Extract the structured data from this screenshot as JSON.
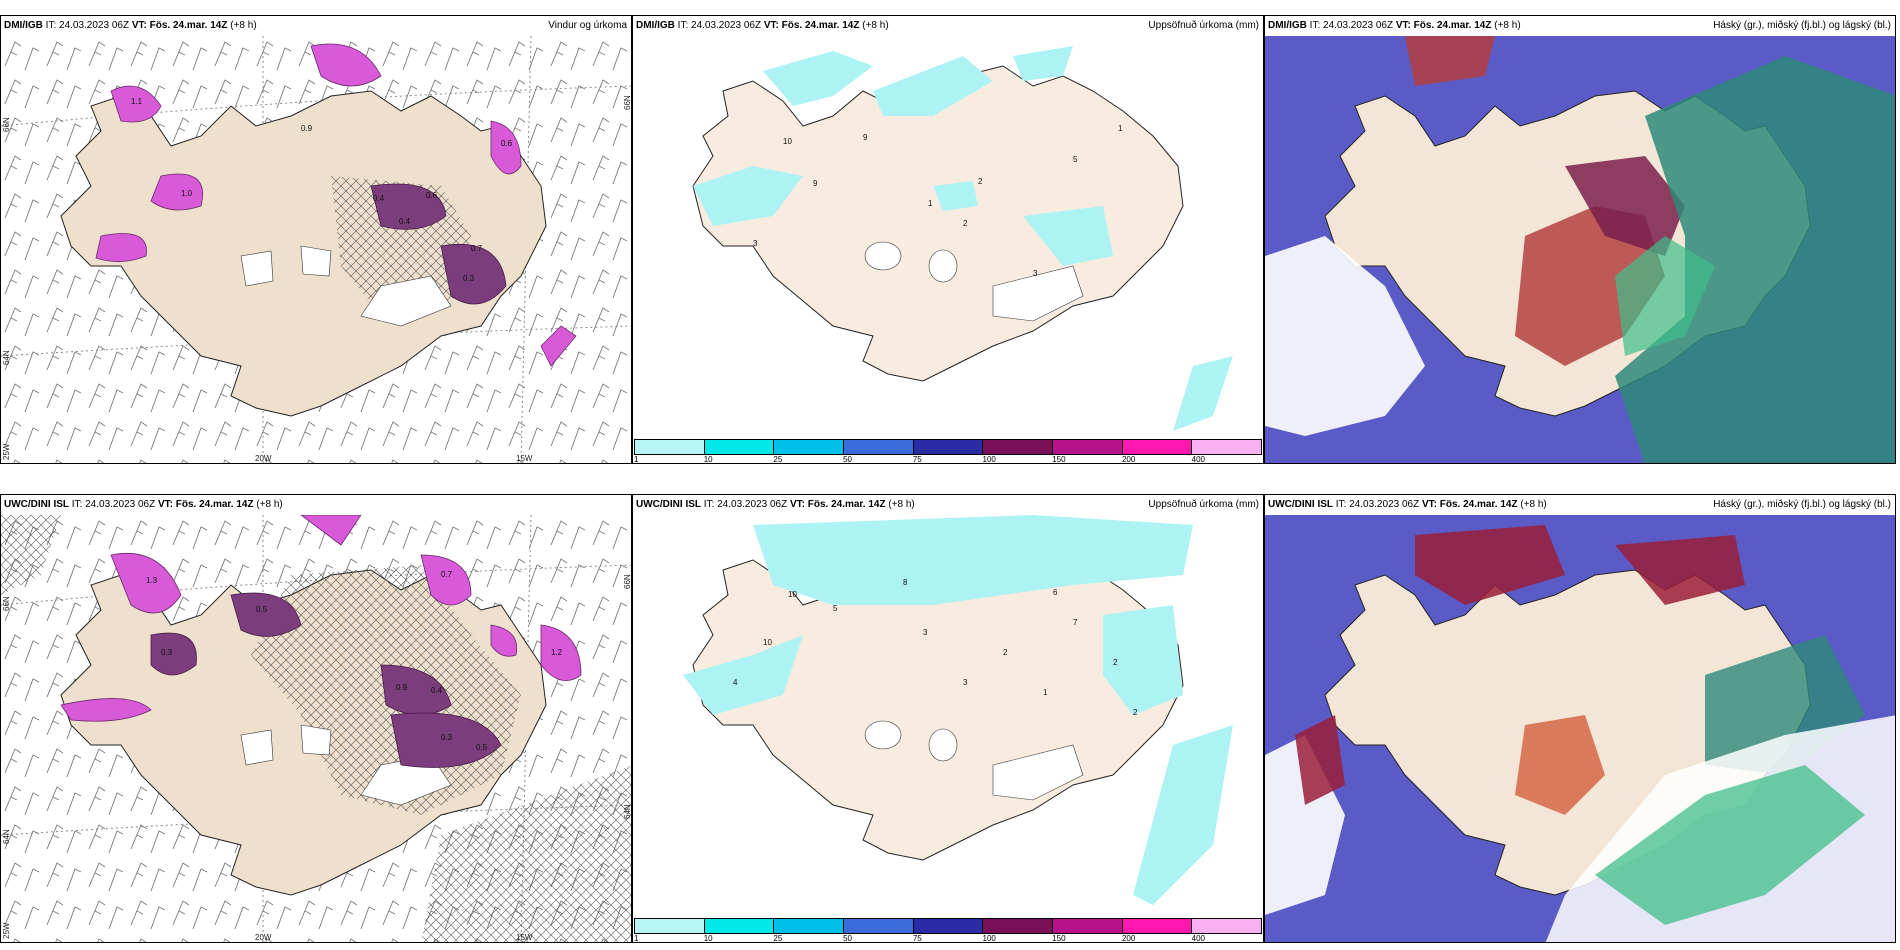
{
  "colors": {
    "land": "#f2e4d2",
    "land_top": "#eadccb",
    "coast": "#2a2a2a",
    "precip_magenta": "#d95ad9",
    "precip_dark": "#7b3d7b",
    "cyan_precip": "#aef3f3",
    "cloud_purple": "#5b5bc8",
    "cloud_red": "#b34040",
    "cloud_teal": "#2e8a7a",
    "cloud_green": "#3fbf8a"
  },
  "rows": [
    {
      "source": "DMI/IGB",
      "it_label": "IT: 24.03.2023 06Z",
      "vt_label": "VT: Fös. 24.mar. 14Z",
      "lead": "(+8 h)",
      "panels": [
        {
          "title": "Vindur og úrkoma",
          "type": "wind"
        },
        {
          "title": "Uppsöfnuð úrkoma (mm)",
          "type": "accum"
        },
        {
          "title": "Háský (gr.), miðský (fj.bl.) og lágský (bl.)",
          "type": "cloud"
        }
      ],
      "wind_values": [
        "0.4",
        "0.6",
        "0.4",
        "0.7",
        "0.3",
        "1.0",
        "0.9",
        "1.1",
        "0.6"
      ],
      "accum_values": [
        "10",
        "9",
        "9",
        "2",
        "2",
        "5",
        "1",
        "3",
        "3",
        "1"
      ]
    },
    {
      "source": "UWC/DINI ISL",
      "it_label": "IT: 24.03.2023 06Z",
      "vt_label": "VT: Fös. 24.mar. 14Z",
      "lead": "(+8 h)",
      "panels": [
        {
          "title": "",
          "type": "wind"
        },
        {
          "title": "Uppsöfnuð úrkoma (mm)",
          "type": "accum"
        },
        {
          "title": "Háský (gr.), miðský (fj.bl.) og lágský (bl.)",
          "type": "cloud"
        }
      ],
      "wind_values": [
        "0.7",
        "1.3",
        "0.5",
        "0.3",
        "0.9",
        "0.4",
        "0.3",
        "0.5",
        "1.2"
      ],
      "accum_values": [
        "10",
        "8",
        "10",
        "5",
        "3",
        "4",
        "6",
        "7",
        "2",
        "3",
        "2",
        "1",
        "2"
      ]
    }
  ],
  "axis_labels": {
    "lat_left_top": "66N",
    "lat_left_mid": "64N",
    "lon_left_bottom": "25W",
    "lon_mid_bottom": "20W",
    "lon_right_bottom": "15W",
    "lat_right_top": "66N",
    "lat_right_mid": "64N"
  },
  "colorbar": {
    "colors": [
      "#b8f6f6",
      "#00e8e8",
      "#00bfe8",
      "#3a6bd9",
      "#2b2ba6",
      "#7a0f5a",
      "#b8128a",
      "#ff18b0",
      "#f8b0f0"
    ],
    "ticks": [
      "1",
      "10",
      "25",
      "50",
      "75",
      "100",
      "150",
      "200",
      "400"
    ]
  }
}
